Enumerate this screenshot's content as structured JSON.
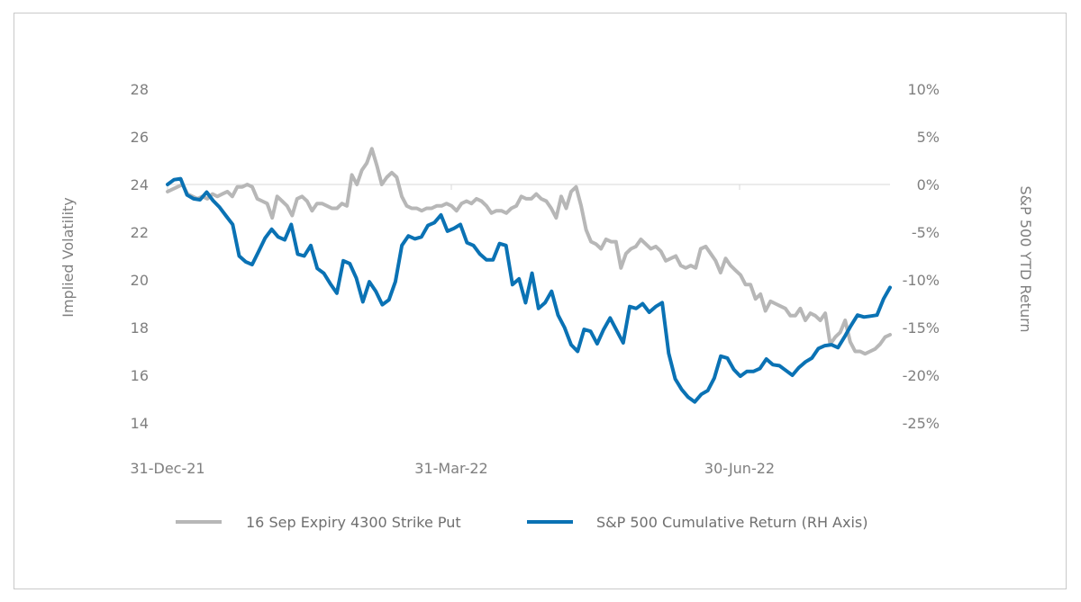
{
  "chart_data": {
    "type": "line",
    "title": "",
    "x_tick_labels": [
      "31-Dec-21",
      "31-Mar-22",
      "30-Jun-22"
    ],
    "left_axis": {
      "label": "Implied Volatility",
      "ylim": [
        14,
        28
      ],
      "ticks": [
        "28",
        "26",
        "24",
        "22",
        "20",
        "18",
        "16",
        "14"
      ]
    },
    "right_axis": {
      "label": "S&P 500 YTD Return",
      "ylim": [
        -25,
        10
      ],
      "ticks": [
        "10%",
        "5%",
        "0%",
        "-5%",
        "-10%",
        "-15%",
        "-20%",
        "-25%"
      ]
    },
    "grid": false,
    "legend_position": "bottom",
    "series": [
      {
        "name": "16 Sep Expiry 4300 Strike Put",
        "axis": "left",
        "color": "#b7b7b7",
        "values": [
          23.7,
          23.8,
          23.9,
          24.0,
          23.6,
          23.5,
          23.4,
          23.5,
          23.4,
          23.6,
          23.5,
          23.6,
          23.7,
          23.5,
          23.9,
          23.9,
          24.0,
          23.9,
          23.4,
          23.3,
          23.2,
          22.6,
          23.5,
          23.3,
          23.1,
          22.7,
          23.4,
          23.5,
          23.3,
          22.9,
          23.2,
          23.2,
          23.1,
          23.0,
          23.0,
          23.2,
          23.1,
          24.4,
          24.0,
          24.6,
          24.9,
          25.5,
          24.8,
          24.0,
          24.3,
          24.5,
          24.3,
          23.5,
          23.1,
          23.0,
          23.0,
          22.9,
          23.0,
          23.0,
          23.1,
          23.1,
          23.2,
          23.1,
          22.9,
          23.2,
          23.3,
          23.2,
          23.4,
          23.3,
          23.1,
          22.8,
          22.9,
          22.9,
          22.8,
          23.0,
          23.1,
          23.5,
          23.4,
          23.4,
          23.6,
          23.4,
          23.3,
          23.0,
          22.6,
          23.5,
          23.0,
          23.7,
          23.9,
          23.1,
          22.1,
          21.6,
          21.5,
          21.3,
          21.7,
          21.6,
          21.6,
          20.5,
          21.1,
          21.3,
          21.4,
          21.7,
          21.5,
          21.3,
          21.4,
          21.2,
          20.8,
          20.9,
          21.0,
          20.6,
          20.5,
          20.6,
          20.5,
          21.3,
          21.4,
          21.1,
          20.8,
          20.3,
          20.9,
          20.6,
          20.4,
          20.2,
          19.8,
          19.8,
          19.2,
          19.4,
          18.7,
          19.1,
          19.0,
          18.9,
          18.8,
          18.5,
          18.5,
          18.8,
          18.3,
          18.6,
          18.5,
          18.3,
          18.6,
          17.3,
          17.6,
          17.8,
          18.3,
          17.4,
          17.0,
          17.0,
          16.9,
          17.0,
          17.1,
          17.3,
          17.6,
          17.7
        ]
      },
      {
        "name": "S&P 500 Cumulative Return (RH Axis)",
        "axis": "right",
        "color": "#0a72b4",
        "values": [
          0.0,
          0.5,
          0.6,
          -1.1,
          -1.5,
          -1.6,
          -0.8,
          -1.7,
          -2.4,
          -3.3,
          -4.2,
          -7.5,
          -8.1,
          -8.4,
          -7.0,
          -5.6,
          -4.7,
          -5.5,
          -5.8,
          -4.2,
          -7.3,
          -7.5,
          -6.4,
          -8.8,
          -9.3,
          -10.4,
          -11.4,
          -8.0,
          -8.3,
          -9.8,
          -12.3,
          -10.2,
          -11.2,
          -12.6,
          -12.1,
          -10.2,
          -6.4,
          -5.4,
          -5.7,
          -5.5,
          -4.3,
          -4.0,
          -3.2,
          -4.9,
          -4.6,
          -4.2,
          -6.1,
          -6.4,
          -7.3,
          -7.9,
          -7.9,
          -6.2,
          -6.4,
          -10.5,
          -9.9,
          -12.4,
          -9.3,
          -13.0,
          -12.4,
          -11.2,
          -13.7,
          -15.0,
          -16.8,
          -17.5,
          -15.2,
          -15.4,
          -16.7,
          -15.2,
          -14.0,
          -15.3,
          -16.6,
          -12.8,
          -13.0,
          -12.5,
          -13.4,
          -12.8,
          -12.4,
          -17.7,
          -20.4,
          -21.5,
          -22.3,
          -22.8,
          -22.0,
          -21.6,
          -20.3,
          -18.0,
          -18.2,
          -19.4,
          -20.1,
          -19.6,
          -19.6,
          -19.3,
          -18.3,
          -18.9,
          -19.0,
          -19.5,
          -20.0,
          -19.2,
          -18.6,
          -18.2,
          -17.2,
          -16.9,
          -16.8,
          -17.1,
          -16.0,
          -14.8,
          -13.7,
          -13.9,
          -13.8,
          -13.7,
          -12.0,
          -10.8
        ]
      }
    ]
  }
}
